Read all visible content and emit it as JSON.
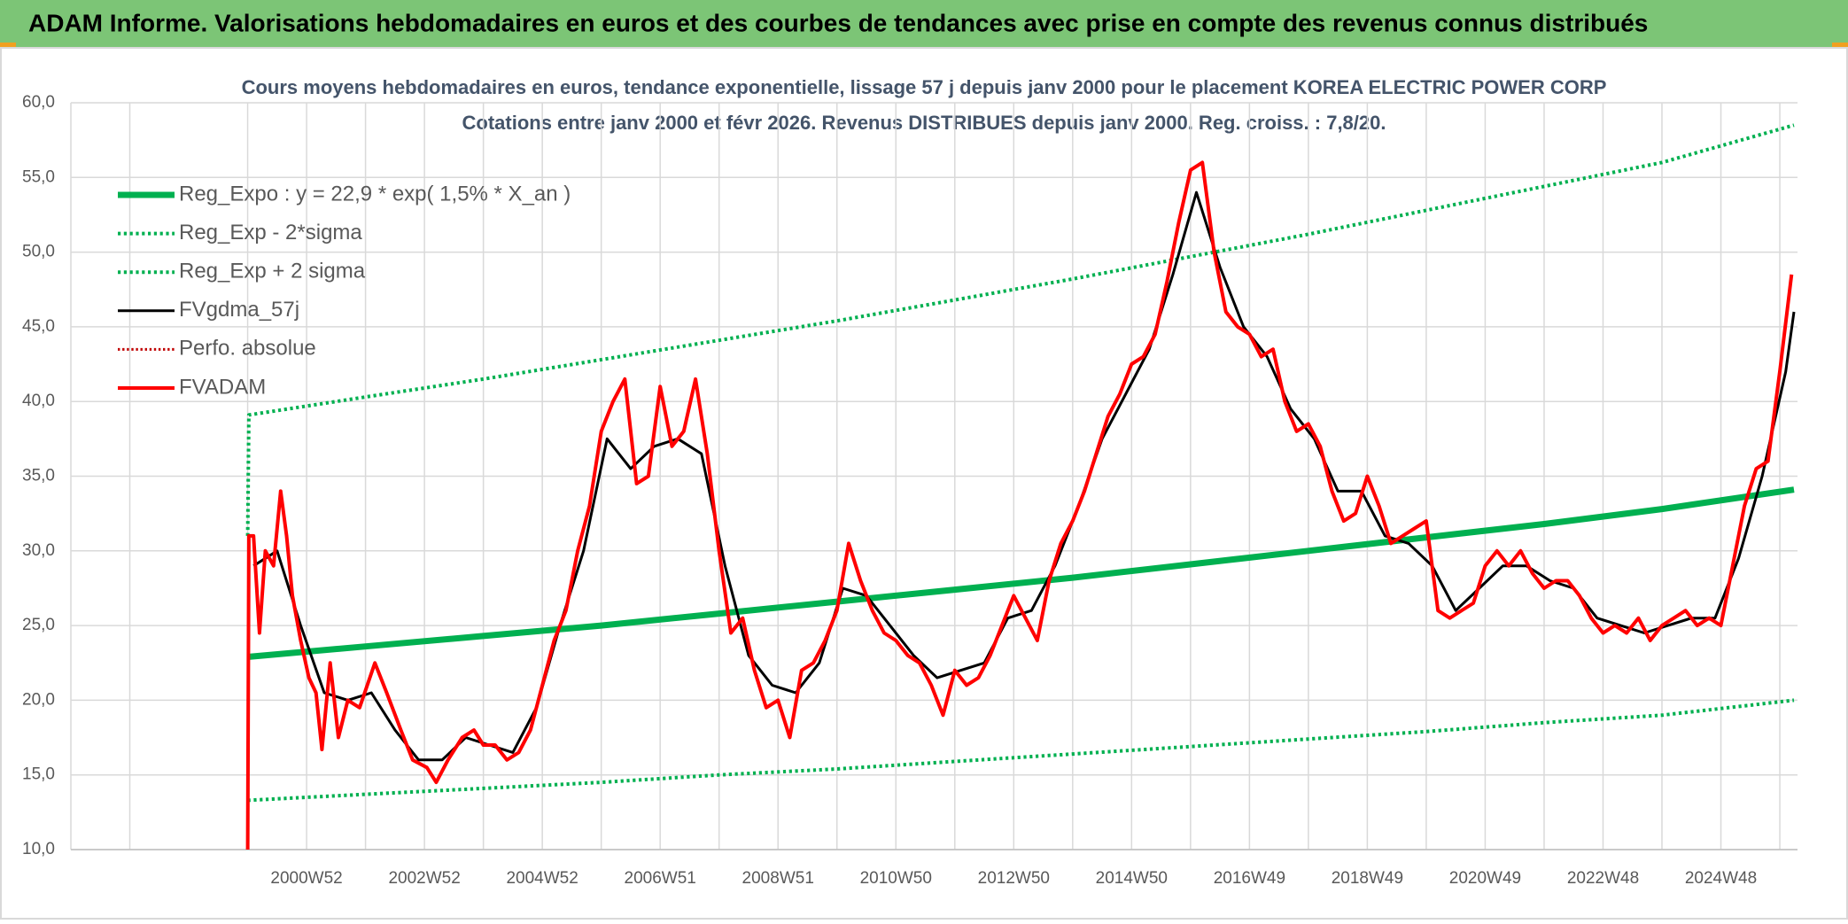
{
  "header": {
    "title": "ADAM Informe. Valorisations hebdomadaires en euros et des courbes de tendances avec prise en compte des revenus connus distribués"
  },
  "chart_data": {
    "type": "line",
    "title": "Cours moyens hebdomadaires en euros, tendance exponentielle, lissage 57 j depuis janv 2000 pour le placement KOREA ELECTRIC POWER CORP",
    "subtitle": "Cotations entre janv 2000 et févr 2026. Revenus DISTRIBUES depuis janv 2000. Reg. croiss. : 7,8/20.",
    "xlim": [
      1997.0,
      2026.3
    ],
    "xticks": [
      {
        "value": 2001,
        "label": "2000W52"
      },
      {
        "value": 2003,
        "label": "2002W52"
      },
      {
        "value": 2005,
        "label": "2004W52"
      },
      {
        "value": 2007,
        "label": "2006W51"
      },
      {
        "value": 2009,
        "label": "2008W51"
      },
      {
        "value": 2011,
        "label": "2010W50"
      },
      {
        "value": 2013,
        "label": "2012W50"
      },
      {
        "value": 2015,
        "label": "2014W50"
      },
      {
        "value": 2017,
        "label": "2016W49"
      },
      {
        "value": 2019,
        "label": "2018W49"
      },
      {
        "value": 2021,
        "label": "2020W49"
      },
      {
        "value": 2023,
        "label": "2022W48"
      },
      {
        "value": 2025,
        "label": "2024W48"
      }
    ],
    "xminorticks": [
      1997,
      1998,
      2000,
      2002,
      2004,
      2006,
      2008,
      2010,
      2012,
      2014,
      2016,
      2018,
      2020,
      2022,
      2024,
      2026
    ],
    "ylim": [
      10,
      60
    ],
    "yticks": [
      {
        "value": 10,
        "label": "10,0"
      },
      {
        "value": 15,
        "label": "15,0"
      },
      {
        "value": 20,
        "label": "20,0"
      },
      {
        "value": 25,
        "label": "25,0"
      },
      {
        "value": 30,
        "label": "30,0"
      },
      {
        "value": 35,
        "label": "35,0"
      },
      {
        "value": 40,
        "label": "40,0"
      },
      {
        "value": 45,
        "label": "45,0"
      },
      {
        "value": 50,
        "label": "50,0"
      },
      {
        "value": 55,
        "label": "55,0"
      },
      {
        "value": 60,
        "label": "60,0"
      }
    ],
    "grid": true,
    "legend": "top-left",
    "series": [
      {
        "name": "Reg_Expo : y = 22,9 * exp( 1,5% *  X_an )",
        "color": "#00b050",
        "dash": "solid",
        "width": 7,
        "x": [
          2000.0,
          2002,
          2004,
          2006,
          2008,
          2010,
          2012,
          2014,
          2016,
          2018,
          2020,
          2022,
          2024,
          2026.24
        ],
        "values": [
          22.9,
          23.6,
          24.3,
          25.0,
          25.8,
          26.6,
          27.4,
          28.2,
          29.1,
          30.0,
          30.9,
          31.8,
          32.8,
          34.1
        ]
      },
      {
        "name": "Reg_Exp - 2*sigma",
        "color": "#00b050",
        "dash": "dotted",
        "width": 4,
        "x": [
          2000.0,
          2002,
          2004,
          2006,
          2008,
          2010,
          2012,
          2014,
          2016,
          2018,
          2020,
          2022,
          2024,
          2026.24
        ],
        "values": [
          13.3,
          13.7,
          14.1,
          14.5,
          15.0,
          15.4,
          15.9,
          16.4,
          16.9,
          17.4,
          17.9,
          18.5,
          19.0,
          20.0
        ]
      },
      {
        "name": "Reg_Exp + 2 sigma",
        "color": "#00b050",
        "dash": "dotted",
        "width": 4,
        "x": [
          2000.0,
          2000.02,
          2002,
          2004,
          2006,
          2008,
          2010,
          2012,
          2014,
          2016,
          2018,
          2020,
          2022,
          2024,
          2026.24
        ],
        "values": [
          31,
          39.1,
          40.3,
          41.5,
          42.8,
          44.1,
          45.4,
          46.8,
          48.2,
          49.7,
          51.2,
          52.8,
          54.4,
          56.0,
          58.5
        ]
      },
      {
        "name": "FVgdma_57j",
        "color": "#000000",
        "dash": "solid",
        "width": 3,
        "x": [
          2000.1,
          2000.5,
          2000.9,
          2001.3,
          2001.7,
          2002.1,
          2002.5,
          2002.9,
          2003.3,
          2003.7,
          2004.1,
          2004.5,
          2004.9,
          2005.3,
          2005.7,
          2006.1,
          2006.5,
          2006.9,
          2007.3,
          2007.7,
          2008.1,
          2008.5,
          2008.9,
          2009.3,
          2009.7,
          2010.1,
          2010.5,
          2010.9,
          2011.3,
          2011.7,
          2012.1,
          2012.5,
          2012.9,
          2013.3,
          2013.7,
          2014.1,
          2014.5,
          2014.9,
          2015.3,
          2015.7,
          2016.1,
          2016.5,
          2016.9,
          2017.3,
          2017.7,
          2018.1,
          2018.5,
          2018.9,
          2019.3,
          2019.7,
          2020.1,
          2020.5,
          2020.9,
          2021.3,
          2021.7,
          2022.1,
          2022.5,
          2022.9,
          2023.3,
          2023.7,
          2024.1,
          2024.5,
          2024.9,
          2025.3,
          2025.7,
          2026.1,
          2026.24
        ],
        "values": [
          29,
          30,
          25,
          20.5,
          20,
          20.5,
          18,
          16,
          16,
          17.5,
          17,
          16.5,
          19.5,
          25,
          30,
          37.5,
          35.5,
          37,
          37.5,
          36.5,
          29,
          23,
          21,
          20.5,
          22.5,
          27.5,
          27,
          25,
          23,
          21.5,
          22,
          22.5,
          25.5,
          26,
          29,
          33,
          37.5,
          40.5,
          43.5,
          48.5,
          54,
          49,
          45,
          43,
          39.5,
          37.5,
          34,
          34,
          31,
          30.5,
          29,
          26,
          27.5,
          29,
          29,
          28,
          27.5,
          25.5,
          25,
          24.5,
          25,
          25.5,
          25.5,
          29.5,
          35,
          42,
          46
        ]
      },
      {
        "name": "Perfo. absolue",
        "color": "#c00000",
        "dash": "dotted",
        "width": 3,
        "x": [
          2000.0,
          2000.02
        ],
        "values": [
          10,
          31
        ]
      },
      {
        "name": "FVADAM",
        "color": "#ff0000",
        "dash": "solid",
        "width": 4,
        "x": [
          2000.0,
          2000.02,
          2000.1,
          2000.2,
          2000.3,
          2000.44,
          2000.56,
          2000.66,
          2000.76,
          2000.9,
          2001.04,
          2001.16,
          2001.26,
          2001.4,
          2001.54,
          2001.7,
          2001.9,
          2002.16,
          2002.36,
          2002.6,
          2002.8,
          2003.04,
          2003.2,
          2003.4,
          2003.64,
          2003.84,
          2004.0,
          2004.2,
          2004.4,
          2004.6,
          2004.8,
          2005.0,
          2005.2,
          2005.4,
          2005.6,
          2005.8,
          2006.0,
          2006.2,
          2006.4,
          2006.6,
          2006.8,
          2007.0,
          2007.2,
          2007.4,
          2007.6,
          2007.8,
          2008.0,
          2008.2,
          2008.4,
          2008.6,
          2008.8,
          2009.0,
          2009.2,
          2009.4,
          2009.6,
          2009.8,
          2010.0,
          2010.2,
          2010.4,
          2010.6,
          2010.8,
          2011.0,
          2011.2,
          2011.4,
          2011.6,
          2011.8,
          2012.0,
          2012.2,
          2012.4,
          2012.6,
          2012.8,
          2013.0,
          2013.2,
          2013.4,
          2013.6,
          2013.8,
          2014.0,
          2014.2,
          2014.4,
          2014.6,
          2014.8,
          2015.0,
          2015.2,
          2015.4,
          2015.6,
          2015.8,
          2016.0,
          2016.2,
          2016.4,
          2016.6,
          2016.8,
          2017.0,
          2017.2,
          2017.4,
          2017.6,
          2017.8,
          2018.0,
          2018.2,
          2018.4,
          2018.6,
          2018.8,
          2019.0,
          2019.2,
          2019.4,
          2019.6,
          2019.8,
          2020.0,
          2020.2,
          2020.4,
          2020.6,
          2020.8,
          2021.0,
          2021.2,
          2021.4,
          2021.6,
          2021.8,
          2022.0,
          2022.2,
          2022.4,
          2022.6,
          2022.8,
          2023.0,
          2023.2,
          2023.4,
          2023.6,
          2023.8,
          2024.0,
          2024.2,
          2024.4,
          2024.6,
          2024.8,
          2025.0,
          2025.2,
          2025.4,
          2025.6,
          2025.8,
          2026.0,
          2026.2
        ],
        "values": [
          10,
          31,
          31,
          24.5,
          30,
          29,
          34,
          31,
          27,
          24,
          21.5,
          20.5,
          16.7,
          22.5,
          17.5,
          20,
          19.5,
          22.5,
          20.5,
          18,
          16,
          15.5,
          14.5,
          16,
          17.5,
          18,
          17,
          17,
          16,
          16.5,
          18,
          21,
          24,
          26,
          30,
          33,
          38,
          40,
          41.5,
          34.5,
          35,
          41,
          37,
          38,
          41.5,
          36.5,
          30,
          24.5,
          25.5,
          22,
          19.5,
          20,
          17.5,
          22,
          22.5,
          24,
          26,
          30.5,
          28,
          26,
          24.5,
          24,
          23,
          22.5,
          21,
          19,
          22,
          21,
          21.5,
          23,
          25,
          27,
          25.5,
          24,
          28,
          30.5,
          32,
          34,
          36.5,
          39,
          40.5,
          42.5,
          43,
          44.5,
          48,
          52,
          55.5,
          56,
          50,
          46,
          45,
          44.5,
          43,
          43.5,
          40,
          38,
          38.5,
          37,
          34,
          32,
          32.5,
          35,
          33,
          30.5,
          31,
          31.5,
          32,
          26,
          25.5,
          26,
          26.5,
          29,
          30,
          29,
          30,
          28.5,
          27.5,
          28,
          28,
          27,
          25.5,
          24.5,
          25,
          24.5,
          25.5,
          24,
          25,
          25.5,
          26,
          25,
          25.5,
          25,
          29,
          33,
          35.5,
          36,
          42,
          48.5
        ]
      }
    ]
  }
}
